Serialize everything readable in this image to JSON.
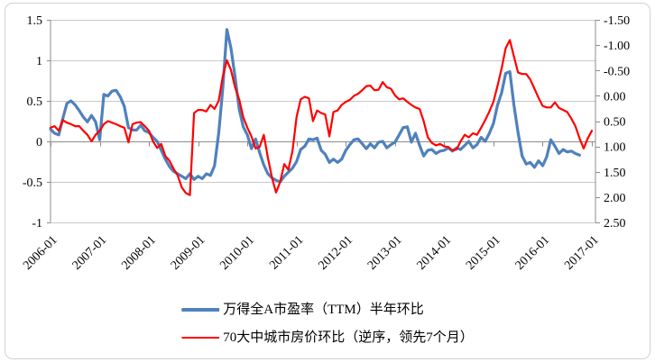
{
  "chart_data": {
    "type": "line",
    "title": "",
    "x_unit": "month",
    "x_start": "2006-01",
    "x_tick_labels": [
      "2006-01",
      "2007-01",
      "2008-01",
      "2009-01",
      "2010-01",
      "2011-01",
      "2012-01",
      "2013-01",
      "2014-01",
      "2015-01",
      "2016-01",
      "2017-01"
    ],
    "left_axis": {
      "min": -1,
      "max": 1.5,
      "ticks": [
        "1.5",
        "1",
        "0.5",
        "0",
        "-0.5",
        "-1"
      ]
    },
    "right_axis": {
      "min": -1.5,
      "max": 2.5,
      "inverted": true,
      "ticks": [
        "-1.50",
        "-1.00",
        "-0.50",
        "0.00",
        "0.50",
        "1.00",
        "1.50",
        "2.00",
        "2.50"
      ]
    },
    "grid": true,
    "legend_position": "bottom",
    "series": [
      {
        "name": "万得全A市盈率（TTM）半年环比",
        "axis": "left",
        "color": "#4F81BD",
        "stroke_width": 3.2,
        "start": "2006-01",
        "values": [
          0.15,
          0.1,
          0.08,
          0.28,
          0.47,
          0.5,
          0.45,
          0.38,
          0.3,
          0.24,
          0.32,
          0.24,
          0.02,
          0.58,
          0.56,
          0.62,
          0.63,
          0.55,
          0.43,
          0.17,
          0.14,
          0.14,
          0.2,
          0.13,
          0.11,
          0.05,
          0.0,
          -0.11,
          -0.22,
          -0.31,
          -0.37,
          -0.4,
          -0.43,
          -0.46,
          -0.4,
          -0.47,
          -0.43,
          -0.46,
          -0.4,
          -0.42,
          -0.3,
          0.1,
          0.65,
          1.38,
          1.15,
          0.8,
          0.4,
          0.18,
          0.08,
          -0.09,
          0.03,
          -0.14,
          -0.29,
          -0.4,
          -0.45,
          -0.48,
          -0.5,
          -0.43,
          -0.38,
          -0.33,
          -0.25,
          -0.1,
          -0.06,
          0.03,
          0.02,
          0.04,
          -0.11,
          -0.16,
          -0.26,
          -0.22,
          -0.26,
          -0.22,
          -0.11,
          -0.04,
          0.02,
          0.03,
          -0.03,
          -0.09,
          -0.03,
          -0.08,
          -0.01,
          0.0,
          -0.08,
          -0.04,
          -0.01,
          0.08,
          0.17,
          0.18,
          -0.01,
          0.1,
          -0.05,
          -0.18,
          -0.11,
          -0.1,
          -0.15,
          -0.12,
          -0.11,
          -0.08,
          -0.12,
          -0.08,
          -0.1,
          -0.05,
          0.0,
          -0.08,
          -0.04,
          0.05,
          0.0,
          0.1,
          0.22,
          0.45,
          0.6,
          0.84,
          0.86,
          0.45,
          0.11,
          -0.18,
          -0.28,
          -0.26,
          -0.32,
          -0.24,
          -0.3,
          -0.19,
          0.02,
          -0.06,
          -0.15,
          -0.1,
          -0.13,
          -0.12,
          -0.15,
          -0.17
        ]
      },
      {
        "name": "70大中城市房价环比（逆序，领先7个月）",
        "axis": "right",
        "color": "#FF0000",
        "stroke_width": 2.2,
        "start": "2006-01",
        "values": [
          0.63,
          0.6,
          0.69,
          0.48,
          0.53,
          0.56,
          0.6,
          0.6,
          0.69,
          0.77,
          0.9,
          0.77,
          0.69,
          0.56,
          0.5,
          0.53,
          0.56,
          0.6,
          0.63,
          0.92,
          0.56,
          0.53,
          0.52,
          0.6,
          0.69,
          0.9,
          1.03,
          0.95,
          1.19,
          1.28,
          1.44,
          1.57,
          1.81,
          1.92,
          1.96,
          0.34,
          0.28,
          0.28,
          0.31,
          0.18,
          0.26,
          0.1,
          -0.38,
          -0.7,
          -0.51,
          -0.17,
          0.07,
          0.42,
          0.63,
          0.8,
          1.04,
          1.01,
          0.77,
          1.22,
          1.62,
          1.91,
          1.7,
          1.35,
          1.46,
          1.09,
          0.42,
          0.07,
          0.02,
          0.05,
          0.5,
          0.29,
          0.34,
          0.37,
          0.8,
          0.32,
          0.29,
          0.18,
          0.12,
          0.08,
          0.0,
          -0.04,
          -0.11,
          -0.19,
          -0.2,
          -0.11,
          -0.12,
          -0.27,
          -0.17,
          -0.14,
          -0.01,
          0.07,
          0.05,
          0.12,
          0.18,
          0.23,
          0.26,
          0.5,
          0.82,
          0.93,
          0.98,
          0.95,
          1.0,
          1.01,
          1.08,
          1.06,
          0.9,
          0.77,
          0.82,
          0.74,
          0.77,
          0.63,
          0.48,
          0.31,
          0.12,
          -0.2,
          -0.54,
          -0.94,
          -1.1,
          -0.78,
          -0.46,
          -0.43,
          -0.43,
          -0.32,
          -0.14,
          0.04,
          0.2,
          0.23,
          0.23,
          0.13,
          0.24,
          0.28,
          0.32,
          0.45,
          0.6,
          0.84,
          1.04,
          0.84,
          0.69
        ]
      }
    ]
  }
}
